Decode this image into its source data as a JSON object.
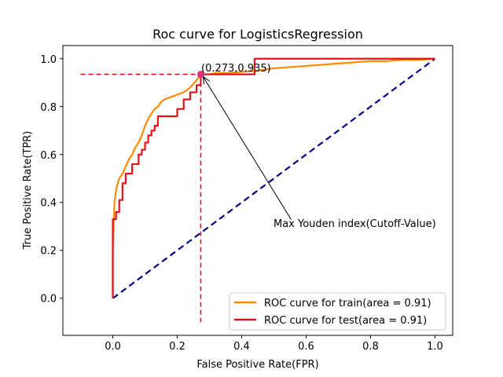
{
  "chart_data": {
    "type": "line",
    "title": "Roc curve for LogisticsRegression",
    "xlabel": "False Positive Rate(FPR)",
    "ylabel": "True Positive Rate(TPR)",
    "xlim": [
      -0.155,
      1.055
    ],
    "ylim": [
      -0.155,
      1.055
    ],
    "xticks": [
      0.0,
      0.2,
      0.4,
      0.6,
      0.8,
      1.0
    ],
    "yticks": [
      0.0,
      0.2,
      0.4,
      0.6,
      0.8,
      1.0
    ],
    "xtick_labels": [
      "0.0",
      "0.2",
      "0.4",
      "0.6",
      "0.8",
      "1.0"
    ],
    "ytick_labels": [
      "0.0",
      "0.2",
      "0.4",
      "0.6",
      "0.8",
      "1.0"
    ],
    "grid": false,
    "legend_position": "lower-right",
    "series": [
      {
        "name": "ROC curve for train(area = 0.91)",
        "color": "#ff8c00",
        "x": [
          0.0,
          0.0,
          0.005,
          0.01,
          0.015,
          0.02,
          0.03,
          0.04,
          0.05,
          0.06,
          0.07,
          0.08,
          0.09,
          0.1,
          0.11,
          0.12,
          0.13,
          0.14,
          0.15,
          0.16,
          0.18,
          0.2,
          0.22,
          0.24,
          0.26,
          0.273,
          0.3,
          0.32,
          0.35,
          0.4,
          0.45,
          0.5,
          0.55,
          0.6,
          0.65,
          0.7,
          0.75,
          0.8,
          0.85,
          0.9,
          0.95,
          1.0
        ],
        "y": [
          0.0,
          0.2,
          0.4,
          0.45,
          0.48,
          0.5,
          0.52,
          0.55,
          0.58,
          0.6,
          0.63,
          0.65,
          0.68,
          0.72,
          0.75,
          0.77,
          0.79,
          0.8,
          0.82,
          0.83,
          0.84,
          0.85,
          0.86,
          0.88,
          0.91,
          0.935,
          0.935,
          0.94,
          0.94,
          0.945,
          0.95,
          0.96,
          0.965,
          0.97,
          0.975,
          0.98,
          0.985,
          0.99,
          0.99,
          0.995,
          0.995,
          1.0
        ]
      },
      {
        "name": "ROC curve for test(area = 0.91)",
        "color": "#e8101a",
        "x": [
          0.0,
          0.0,
          0.01,
          0.01,
          0.02,
          0.02,
          0.03,
          0.03,
          0.04,
          0.04,
          0.06,
          0.06,
          0.08,
          0.08,
          0.09,
          0.09,
          0.1,
          0.1,
          0.11,
          0.11,
          0.12,
          0.12,
          0.13,
          0.13,
          0.14,
          0.14,
          0.16,
          0.16,
          0.2,
          0.2,
          0.22,
          0.22,
          0.24,
          0.24,
          0.26,
          0.26,
          0.273,
          0.273,
          0.44,
          0.44,
          1.0
        ],
        "y": [
          0.0,
          0.33,
          0.33,
          0.36,
          0.36,
          0.41,
          0.41,
          0.48,
          0.48,
          0.52,
          0.52,
          0.56,
          0.56,
          0.6,
          0.6,
          0.62,
          0.62,
          0.65,
          0.65,
          0.68,
          0.68,
          0.7,
          0.7,
          0.72,
          0.72,
          0.76,
          0.76,
          0.76,
          0.76,
          0.79,
          0.79,
          0.83,
          0.83,
          0.86,
          0.86,
          0.89,
          0.89,
          0.935,
          0.935,
          1.0,
          1.0
        ]
      },
      {
        "name": "",
        "color": "#000080",
        "style": "dashed",
        "x": [
          0.0,
          1.0
        ],
        "y": [
          0.0,
          1.0
        ]
      }
    ],
    "cutoff_point": {
      "x": 0.273,
      "y": 0.935,
      "label": "(0.273,0.935)",
      "marker_color": "#e8101a",
      "guide_color": "#e8101a",
      "guide_h_from_x": -0.1,
      "guide_v_to_y": -0.1
    },
    "annotation": {
      "text": "Max Youden index(Cutoff-Value)",
      "anchor_x": 0.5,
      "anchor_y": 0.315,
      "points_to_x": 0.273,
      "points_to_y": 0.935
    }
  }
}
